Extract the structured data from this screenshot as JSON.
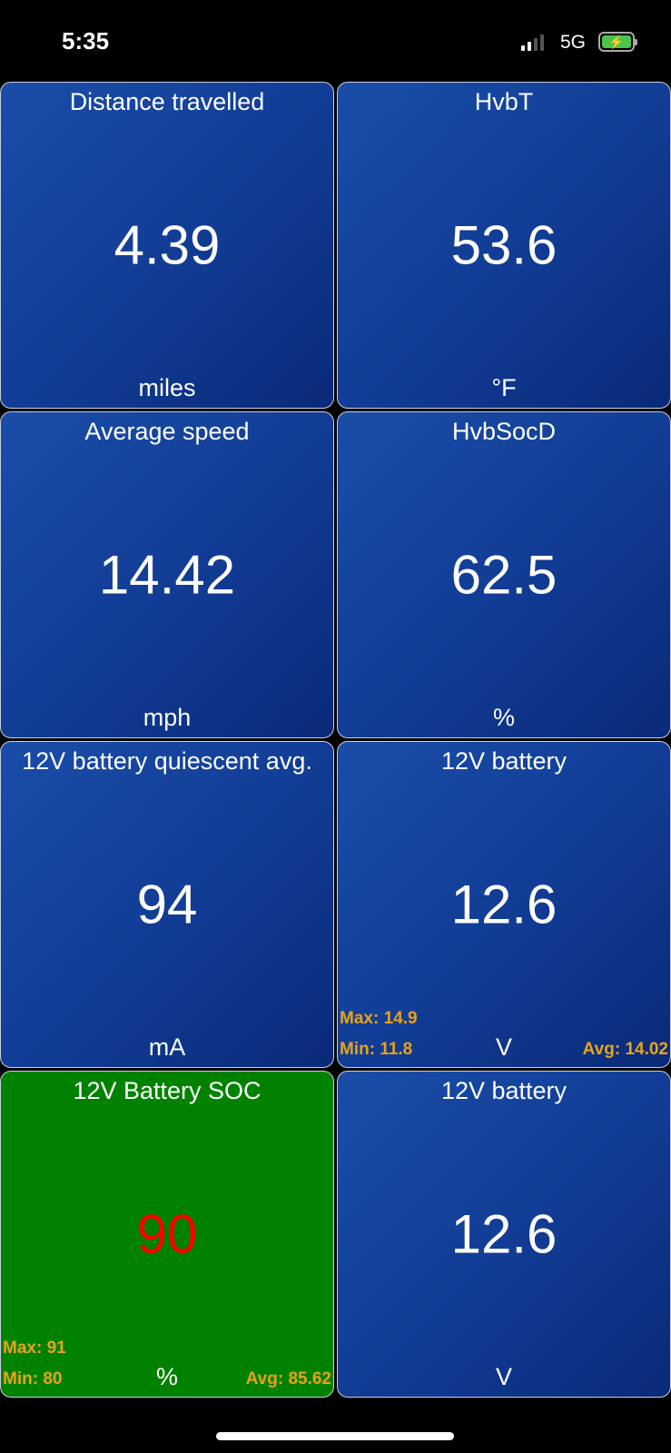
{
  "status_bar": {
    "time": "5:35",
    "network": "5G",
    "battery_icon": "battery-charging-icon"
  },
  "colors": {
    "tile_blue": "#123d96",
    "tile_green": "#008200",
    "alert_value": "#ff0000",
    "stats": "#e8a317"
  },
  "tiles": [
    {
      "title": "Distance travelled",
      "value": "4.39",
      "unit": "miles"
    },
    {
      "title": "HvbT",
      "value": "53.6",
      "unit": "°F"
    },
    {
      "title": "Average speed",
      "value": "14.42",
      "unit": "mph"
    },
    {
      "title": "HvbSocD",
      "value": "62.5",
      "unit": "%"
    },
    {
      "title": "12V battery quiescent avg.",
      "value": "94",
      "unit": "mA"
    },
    {
      "title": "12V battery",
      "value": "12.6",
      "unit": "V",
      "max": "Max: 14.9",
      "min": "Min: 11.8",
      "avg": "Avg: 14.02"
    },
    {
      "title": "12V Battery SOC",
      "value": "90",
      "unit": "%",
      "max": "Max: 91",
      "min": "Min: 80",
      "avg": "Avg: 85.62"
    },
    {
      "title": "12V battery",
      "value": "12.6",
      "unit": "V"
    }
  ]
}
